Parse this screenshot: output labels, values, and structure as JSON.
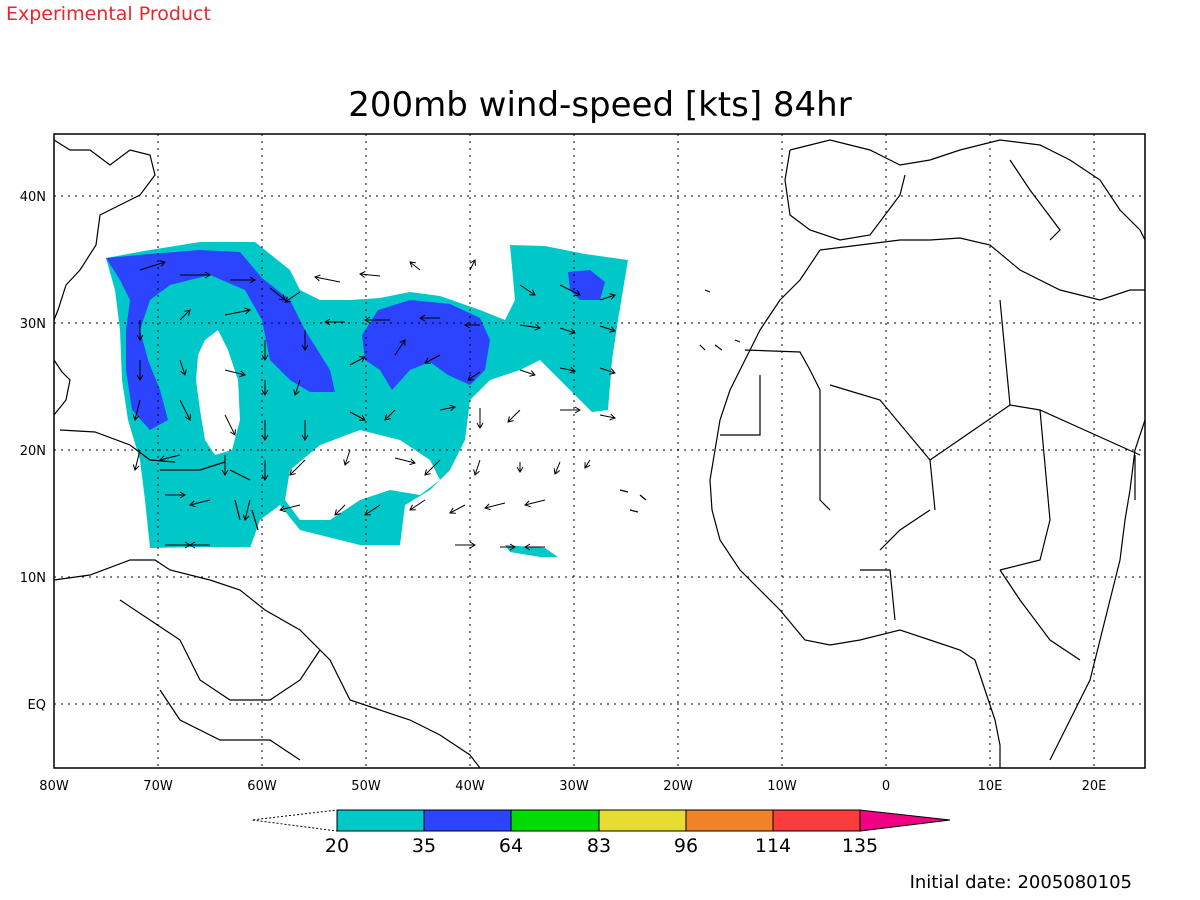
{
  "header": {
    "banner": "Experimental Product",
    "title": "200mb wind-speed [kts] 84hr"
  },
  "map": {
    "lon_labels": [
      "80W",
      "70W",
      "60W",
      "50W",
      "40W",
      "30W",
      "20W",
      "10W",
      "0",
      "10E",
      "20E"
    ],
    "lat_labels": [
      "40N",
      "30N",
      "20N",
      "10N",
      "EQ"
    ],
    "colors": {
      "band_20_35": "#00c8c8",
      "band_35_64": "#2c44ff",
      "land_outline": "#000000",
      "ocean": "#ffffff"
    }
  },
  "colorbar": {
    "labels": [
      "20",
      "35",
      "64",
      "83",
      "96",
      "114",
      "135"
    ],
    "colors": [
      "#00c8c8",
      "#2c44ff",
      "#00dc00",
      "#e6dc32",
      "#f08228",
      "#fa3c3c",
      "#f00082"
    ]
  },
  "footer": {
    "initial_date": "Initial date: 2005080105"
  }
}
